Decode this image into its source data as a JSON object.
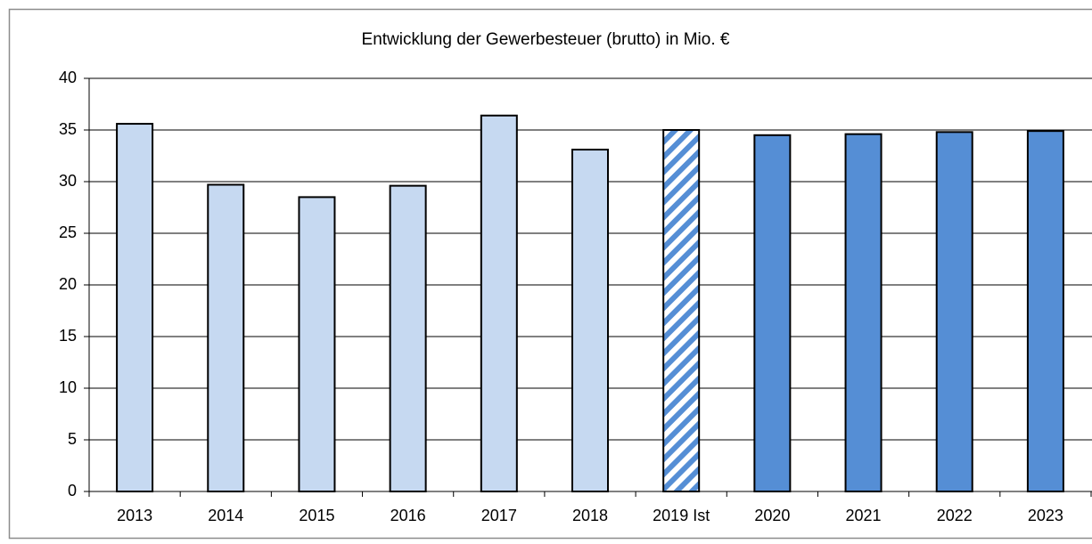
{
  "chart_data": {
    "type": "bar",
    "title": "Entwicklung der Gewerbesteuer (brutto) in Mio. €",
    "categories": [
      "2013",
      "2014",
      "2015",
      "2016",
      "2017",
      "2018",
      "2019 Ist",
      "2020",
      "2021",
      "2022",
      "2023"
    ],
    "values": [
      35.6,
      29.7,
      28.5,
      29.6,
      36.4,
      33.1,
      35.0,
      34.5,
      34.6,
      34.8,
      34.9
    ],
    "colors": [
      "#c6d9f1",
      "#c6d9f1",
      "#c6d9f1",
      "#c6d9f1",
      "#c6d9f1",
      "#c6d9f1",
      "#558ed5",
      "#558ed5",
      "#558ed5",
      "#558ed5",
      "#558ed5"
    ],
    "hatched": [
      false,
      false,
      false,
      false,
      false,
      false,
      true,
      false,
      false,
      false,
      false
    ],
    "ylim": [
      0,
      40
    ],
    "yticks": [
      0,
      5,
      10,
      15,
      20,
      25,
      30,
      35,
      40
    ],
    "grid": true
  }
}
